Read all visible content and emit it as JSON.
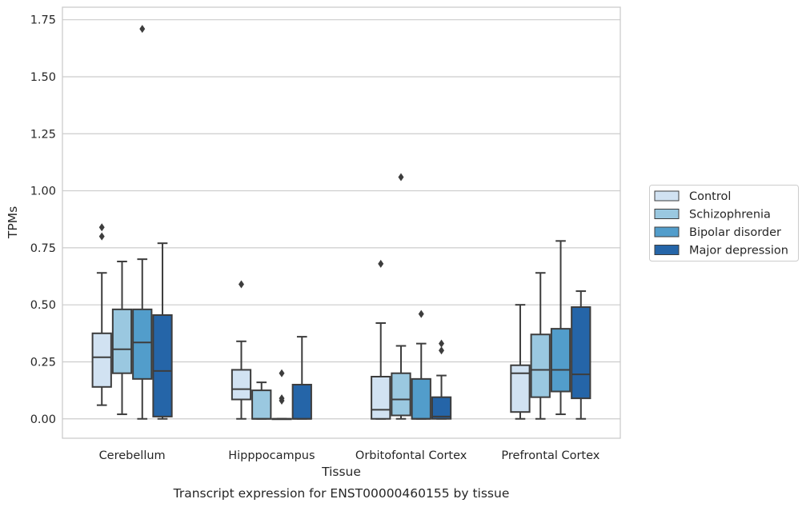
{
  "chart_data": {
    "type": "box",
    "title": "Transcript expression for ENST00000460155 by tissue",
    "xlabel": "Tissue",
    "ylabel": "TPMs",
    "ylim": [
      -0.085,
      1.805
    ],
    "yticks": [
      0.0,
      0.25,
      0.5,
      0.75,
      1.0,
      1.25,
      1.5,
      1.75
    ],
    "ytick_labels": [
      "0.00",
      "0.25",
      "0.50",
      "0.75",
      "1.00",
      "1.25",
      "1.50",
      "1.75"
    ],
    "grid": "horizontal",
    "legend_position": "right",
    "categories": [
      "Cerebellum",
      "Hipppocampus",
      "Orbitofontal Cortex",
      "Prefrontal Cortex"
    ],
    "series": [
      {
        "name": "Control",
        "color": "#d1e2f2",
        "boxes": [
          {
            "whislo": 0.06,
            "q1": 0.14,
            "med": 0.27,
            "q3": 0.375,
            "whishi": 0.64,
            "fliers": [
              0.8,
              0.84
            ]
          },
          {
            "whislo": 0.0,
            "q1": 0.085,
            "med": 0.13,
            "q3": 0.215,
            "whishi": 0.34,
            "fliers": [
              0.59
            ]
          },
          {
            "whislo": 0.0,
            "q1": 0.0,
            "med": 0.04,
            "q3": 0.185,
            "whishi": 0.42,
            "fliers": [
              0.68
            ]
          },
          {
            "whislo": 0.0,
            "q1": 0.03,
            "med": 0.2,
            "q3": 0.235,
            "whishi": 0.5,
            "fliers": []
          }
        ]
      },
      {
        "name": "Schizophrenia",
        "color": "#9ac8e0",
        "boxes": [
          {
            "whislo": 0.02,
            "q1": 0.2,
            "med": 0.305,
            "q3": 0.48,
            "whishi": 0.69,
            "fliers": []
          },
          {
            "whislo": 0.0,
            "q1": 0.0,
            "med": 0.0,
            "q3": 0.125,
            "whishi": 0.16,
            "fliers": []
          },
          {
            "whislo": 0.0,
            "q1": 0.015,
            "med": 0.085,
            "q3": 0.2,
            "whishi": 0.32,
            "fliers": [
              1.06
            ]
          },
          {
            "whislo": 0.0,
            "q1": 0.095,
            "med": 0.215,
            "q3": 0.37,
            "whishi": 0.64,
            "fliers": []
          }
        ]
      },
      {
        "name": "Bipolar disorder",
        "color": "#529dcb",
        "boxes": [
          {
            "whislo": 0.0,
            "q1": 0.175,
            "med": 0.335,
            "q3": 0.48,
            "whishi": 0.7,
            "fliers": [
              1.71
            ]
          },
          {
            "whislo": 0.0,
            "q1": 0.0,
            "med": 0.0,
            "q3": 0.0,
            "whishi": 0.0,
            "fliers": [
              0.08,
              0.09,
              0.2
            ]
          },
          {
            "whislo": 0.0,
            "q1": 0.0,
            "med": 0.0,
            "q3": 0.175,
            "whishi": 0.33,
            "fliers": [
              0.46
            ]
          },
          {
            "whislo": 0.02,
            "q1": 0.12,
            "med": 0.215,
            "q3": 0.395,
            "whishi": 0.78,
            "fliers": []
          }
        ]
      },
      {
        "name": "Major depression",
        "color": "#2565a8",
        "boxes": [
          {
            "whislo": 0.0,
            "q1": 0.01,
            "med": 0.21,
            "q3": 0.455,
            "whishi": 0.77,
            "fliers": []
          },
          {
            "whislo": 0.0,
            "q1": 0.0,
            "med": 0.0,
            "q3": 0.15,
            "whishi": 0.36,
            "fliers": []
          },
          {
            "whislo": 0.0,
            "q1": 0.0,
            "med": 0.01,
            "q3": 0.095,
            "whishi": 0.19,
            "fliers": [
              0.3,
              0.33
            ]
          },
          {
            "whislo": 0.0,
            "q1": 0.09,
            "med": 0.195,
            "q3": 0.49,
            "whishi": 0.56,
            "fliers": []
          }
        ]
      }
    ]
  }
}
